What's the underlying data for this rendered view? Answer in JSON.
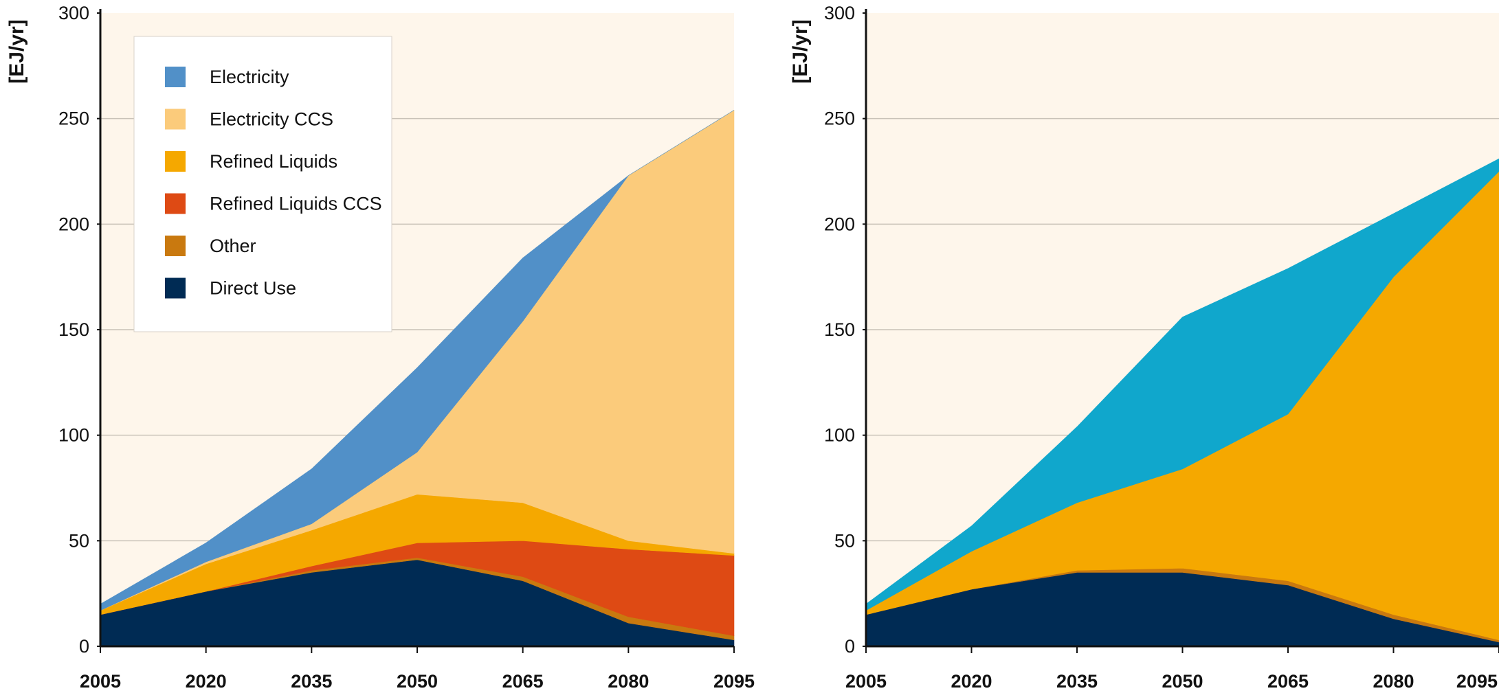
{
  "chart_data": [
    {
      "type": "area",
      "stacked": true,
      "ylabel": "[EJ/yr]",
      "xlabel": "",
      "ylim": [
        0,
        300
      ],
      "yticks": [
        0,
        50,
        100,
        150,
        200,
        250,
        300
      ],
      "x": [
        2005,
        2020,
        2035,
        2050,
        2065,
        2080,
        2095
      ],
      "xticks": [
        "2005",
        "2020",
        "2035",
        "2050",
        "2065",
        "2080",
        "2095"
      ],
      "grid": true,
      "legend": "top-left",
      "series": [
        {
          "name": "Direct Use",
          "color": "#002b54",
          "values": [
            15,
            26,
            35,
            41,
            31,
            11,
            3
          ]
        },
        {
          "name": "Other",
          "color": "#c9790f",
          "values": [
            0,
            0,
            1,
            1,
            2,
            3,
            2
          ]
        },
        {
          "name": "Refined Liquids CCS",
          "color": "#de4a14",
          "values": [
            0,
            0,
            2,
            7,
            17,
            32,
            38
          ]
        },
        {
          "name": "Refined Liquids",
          "color": "#f5a800",
          "values": [
            2,
            13,
            17,
            23,
            18,
            4,
            1
          ]
        },
        {
          "name": "Electricity CCS",
          "color": "#fbcb7b",
          "values": [
            0,
            1,
            3,
            20,
            86,
            173,
            210
          ]
        },
        {
          "name": "Electricity",
          "color": "#5190c8",
          "values": [
            3,
            9,
            26,
            40,
            30,
            0,
            0
          ]
        }
      ],
      "legend_entries": [
        {
          "label": "Electricity",
          "color": "#5190c8"
        },
        {
          "label": "Electricity CCS",
          "color": "#fbcb7b"
        },
        {
          "label": "Refined Liquids",
          "color": "#f5a800"
        },
        {
          "label": "Refined Liquids CCS",
          "color": "#de4a14"
        },
        {
          "label": "Other",
          "color": "#c9790f"
        },
        {
          "label": "Direct Use",
          "color": "#002b54"
        }
      ]
    },
    {
      "type": "area",
      "stacked": true,
      "ylabel": "[EJ/yr]",
      "xlabel": "",
      "ylim": [
        0,
        300
      ],
      "yticks": [
        0,
        50,
        100,
        150,
        200,
        250,
        300
      ],
      "x": [
        2005,
        2020,
        2035,
        2050,
        2065,
        2080,
        2095
      ],
      "xticks": [
        "2005",
        "2020",
        "2035",
        "2050",
        "2065",
        "2080",
        "2095"
      ],
      "grid": true,
      "series": [
        {
          "color": "#002b54",
          "values": [
            15,
            27,
            35,
            35,
            29,
            13,
            2
          ]
        },
        {
          "color": "#c9790f",
          "values": [
            0,
            0,
            1,
            2,
            2,
            2,
            1
          ]
        },
        {
          "color": "#f5a800",
          "values": [
            2,
            18,
            32,
            47,
            79,
            160,
            222
          ]
        },
        {
          "color": "#10a7cc",
          "values": [
            3,
            12,
            36,
            72,
            69,
            30,
            6
          ]
        }
      ]
    }
  ]
}
